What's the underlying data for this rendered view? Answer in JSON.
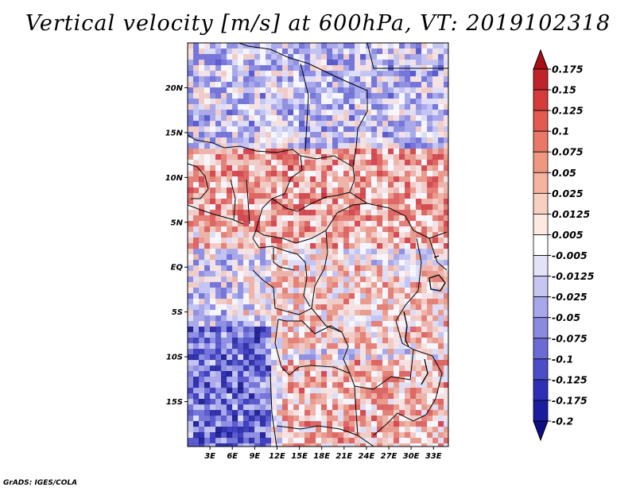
{
  "title": "Vertical velocity [m/s] at 600hPa, VT: 2019102318",
  "credit": "GrADS: IGES/COLA",
  "map": {
    "region": "Central Africa",
    "lon_range": [
      0,
      35
    ],
    "lat_range": [
      -20,
      25
    ],
    "lat_ticks": [
      "20N",
      "15N",
      "10N",
      "5N",
      "EQ",
      "5S",
      "10S",
      "15S"
    ],
    "lat_tick_values": [
      20,
      15,
      10,
      5,
      0,
      -5,
      -10,
      -15
    ],
    "lon_ticks": [
      "3E",
      "6E",
      "9E",
      "12E",
      "15E",
      "18E",
      "21E",
      "24E",
      "27E",
      "30E",
      "33E"
    ],
    "lon_tick_values": [
      3,
      6,
      9,
      12,
      15,
      18,
      21,
      24,
      27,
      30,
      33
    ]
  },
  "colorbar": {
    "labels": [
      "0.175",
      "0.15",
      "0.125",
      "0.1",
      "0.075",
      "0.05",
      "0.025",
      "0.0125",
      "0.005",
      "-0.005",
      "-0.0125",
      "-0.025",
      "-0.05",
      "-0.075",
      "-0.1",
      "-0.125",
      "-0.175",
      "-0.2"
    ],
    "colors": [
      "#a50f15",
      "#c0242a",
      "#d63a3a",
      "#e25a50",
      "#ea7866",
      "#f0977f",
      "#f5b3a0",
      "#f9cfc2",
      "#fde8e2",
      "#ffffff",
      "#e3e3f8",
      "#c6c6f2",
      "#a7a7ea",
      "#8a8ae0",
      "#6b6bd6",
      "#4c4cc8",
      "#2e2eb6",
      "#1c1ca0",
      "#0d0d86"
    ]
  }
}
